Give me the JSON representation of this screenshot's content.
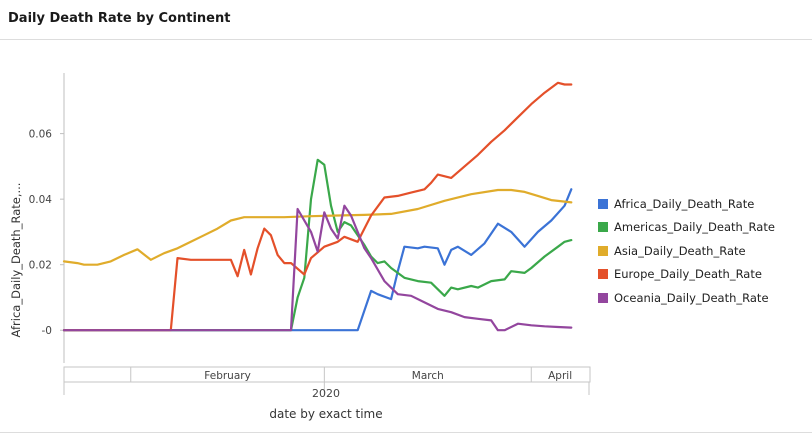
{
  "panel": {
    "title": "Daily Death Rate by Continent"
  },
  "chart_data": {
    "type": "line",
    "title": "Daily Death Rate by Continent",
    "xlabel": "date by exact time",
    "ylabel": "Africa_Daily_Death_Rate,...",
    "x_year_label": "2020",
    "x_month_labels": [
      "February",
      "March",
      "April"
    ],
    "y_tick_labels": [
      "-0",
      "0.02",
      "0.04",
      "0.06"
    ],
    "y_ticks": [
      0,
      0.02,
      0.04,
      0.06
    ],
    "ylim": [
      -0.01,
      0.0785
    ],
    "xlim": [
      "2020-01-22",
      "2020-04-08"
    ],
    "legend_position": "right",
    "grid": false,
    "series": [
      {
        "name": "Africa_Daily_Death_Rate",
        "color": "#3b73d6",
        "dates": [
          "2020-01-22",
          "2020-03-01",
          "2020-03-06",
          "2020-03-08",
          "2020-03-09",
          "2020-03-11",
          "2020-03-12",
          "2020-03-13",
          "2020-03-15",
          "2020-03-16",
          "2020-03-18",
          "2020-03-19",
          "2020-03-20",
          "2020-03-21",
          "2020-03-23",
          "2020-03-25",
          "2020-03-27",
          "2020-03-29",
          "2020-03-31",
          "2020-04-02",
          "2020-04-04",
          "2020-04-06",
          "2020-04-07"
        ],
        "values": [
          0,
          0,
          0,
          0.012,
          0.011,
          0.0095,
          0.018,
          0.0255,
          0.025,
          0.0255,
          0.025,
          0.02,
          0.0245,
          0.0255,
          0.023,
          0.0265,
          0.0325,
          0.03,
          0.0255,
          0.03,
          0.0335,
          0.038,
          0.043
        ]
      },
      {
        "name": "Americas_Daily_Death_Rate",
        "color": "#3aa84a",
        "dates": [
          "2020-01-22",
          "2020-02-25",
          "2020-02-26",
          "2020-02-27",
          "2020-02-28",
          "2020-02-29",
          "2020-03-01",
          "2020-03-02",
          "2020-03-03",
          "2020-03-04",
          "2020-03-05",
          "2020-03-06",
          "2020-03-07",
          "2020-03-08",
          "2020-03-09",
          "2020-03-10",
          "2020-03-11",
          "2020-03-13",
          "2020-03-15",
          "2020-03-17",
          "2020-03-19",
          "2020-03-20",
          "2020-03-21",
          "2020-03-23",
          "2020-03-24",
          "2020-03-26",
          "2020-03-28",
          "2020-03-29",
          "2020-03-31",
          "2020-04-01",
          "2020-04-03",
          "2020-04-05",
          "2020-04-06",
          "2020-04-07"
        ],
        "values": [
          0,
          0,
          0.01,
          0.016,
          0.04,
          0.052,
          0.0505,
          0.038,
          0.03,
          0.033,
          0.032,
          0.029,
          0.026,
          0.0225,
          0.0205,
          0.021,
          0.019,
          0.016,
          0.015,
          0.0145,
          0.0105,
          0.013,
          0.0125,
          0.0135,
          0.013,
          0.015,
          0.0155,
          0.018,
          0.0175,
          0.019,
          0.0225,
          0.0255,
          0.027,
          0.0275
        ]
      },
      {
        "name": "Asia_Daily_Death_Rate",
        "color": "#e0ac2b",
        "dates": [
          "2020-01-22",
          "2020-01-24",
          "2020-01-25",
          "2020-01-27",
          "2020-01-29",
          "2020-01-31",
          "2020-02-02",
          "2020-02-04",
          "2020-02-06",
          "2020-02-08",
          "2020-02-10",
          "2020-02-12",
          "2020-02-14",
          "2020-02-16",
          "2020-02-18",
          "2020-02-20",
          "2020-02-24",
          "2020-02-28",
          "2020-03-03",
          "2020-03-07",
          "2020-03-11",
          "2020-03-15",
          "2020-03-19",
          "2020-03-23",
          "2020-03-27",
          "2020-03-29",
          "2020-03-31",
          "2020-04-02",
          "2020-04-04",
          "2020-04-07"
        ],
        "values": [
          0.021,
          0.0205,
          0.02,
          0.02,
          0.021,
          0.023,
          0.0247,
          0.0215,
          0.0235,
          0.025,
          0.027,
          0.029,
          0.031,
          0.0335,
          0.0345,
          0.0345,
          0.0345,
          0.0348,
          0.035,
          0.0352,
          0.0355,
          0.037,
          0.0395,
          0.0415,
          0.0428,
          0.0428,
          0.0422,
          0.041,
          0.0397,
          0.039
        ]
      },
      {
        "name": "Europe_Daily_Death_Rate",
        "color": "#e4502a",
        "dates": [
          "2020-01-22",
          "2020-02-07",
          "2020-02-08",
          "2020-02-10",
          "2020-02-13",
          "2020-02-16",
          "2020-02-17",
          "2020-02-18",
          "2020-02-19",
          "2020-02-20",
          "2020-02-21",
          "2020-02-22",
          "2020-02-23",
          "2020-02-24",
          "2020-02-25",
          "2020-02-27",
          "2020-02-28",
          "2020-03-01",
          "2020-03-03",
          "2020-03-04",
          "2020-03-06",
          "2020-03-08",
          "2020-03-10",
          "2020-03-12",
          "2020-03-14",
          "2020-03-16",
          "2020-03-17",
          "2020-03-18",
          "2020-03-20",
          "2020-03-22",
          "2020-03-24",
          "2020-03-26",
          "2020-03-28",
          "2020-03-30",
          "2020-04-01",
          "2020-04-03",
          "2020-04-05",
          "2020-04-06",
          "2020-04-07"
        ],
        "values": [
          0,
          0,
          0.022,
          0.0215,
          0.0215,
          0.0215,
          0.0165,
          0.0245,
          0.017,
          0.025,
          0.031,
          0.029,
          0.023,
          0.0205,
          0.0205,
          0.017,
          0.022,
          0.0255,
          0.027,
          0.0285,
          0.027,
          0.035,
          0.0405,
          0.041,
          0.042,
          0.043,
          0.045,
          0.0475,
          0.0465,
          0.05,
          0.0535,
          0.0575,
          0.061,
          0.065,
          0.069,
          0.0725,
          0.0755,
          0.075,
          0.075
        ]
      },
      {
        "name": "Oceania_Daily_Death_Rate",
        "color": "#93469e",
        "dates": [
          "2020-01-22",
          "2020-02-25",
          "2020-02-26",
          "2020-02-28",
          "2020-02-29",
          "2020-03-01",
          "2020-03-02",
          "2020-03-03",
          "2020-03-04",
          "2020-03-05",
          "2020-03-06",
          "2020-03-07",
          "2020-03-08",
          "2020-03-10",
          "2020-03-12",
          "2020-03-14",
          "2020-03-16",
          "2020-03-18",
          "2020-03-20",
          "2020-03-22",
          "2020-03-24",
          "2020-03-26",
          "2020-03-27",
          "2020-03-28",
          "2020-03-30",
          "2020-04-01",
          "2020-04-03",
          "2020-04-05",
          "2020-04-07"
        ],
        "values": [
          0,
          0,
          0.037,
          0.03,
          0.024,
          0.036,
          0.031,
          0.028,
          0.038,
          0.035,
          0.03,
          0.025,
          0.022,
          0.015,
          0.011,
          0.0105,
          0.0085,
          0.0065,
          0.0055,
          0.004,
          0.0035,
          0.003,
          0,
          0,
          0.002,
          0.0015,
          0.0012,
          0.001,
          0.0008
        ]
      }
    ]
  }
}
